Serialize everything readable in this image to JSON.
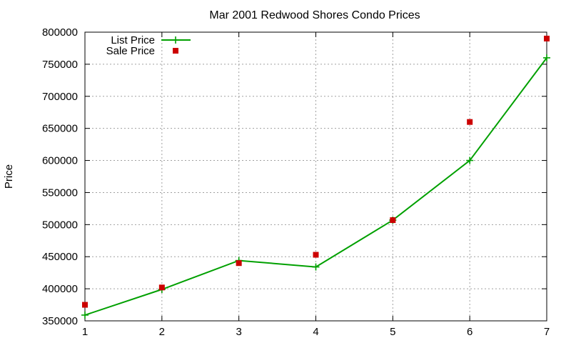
{
  "chart_data": {
    "type": "line",
    "title": "Mar 2001 Redwood Shores Condo Prices",
    "xlabel": "",
    "ylabel": "Price",
    "xlim": [
      1,
      7
    ],
    "ylim": [
      350000,
      800000
    ],
    "x_ticks": [
      1,
      2,
      3,
      4,
      5,
      6,
      7
    ],
    "y_ticks": [
      350000,
      400000,
      450000,
      500000,
      550000,
      600000,
      650000,
      700000,
      750000,
      800000
    ],
    "grid": true,
    "legend_position": "top-left",
    "series": [
      {
        "name": "List Price",
        "style": "line-with-plus-markers",
        "color": "#00a000",
        "x": [
          1,
          2,
          3,
          4,
          5,
          6,
          7
        ],
        "values": [
          359000,
          399000,
          444000,
          434000,
          507000,
          600000,
          760000
        ]
      },
      {
        "name": "Sale Price",
        "style": "square-markers",
        "color": "#cc0000",
        "x": [
          1,
          2,
          3,
          4,
          5,
          6,
          7
        ],
        "values": [
          375000,
          402000,
          440000,
          453000,
          507000,
          660000,
          790000
        ]
      }
    ]
  }
}
